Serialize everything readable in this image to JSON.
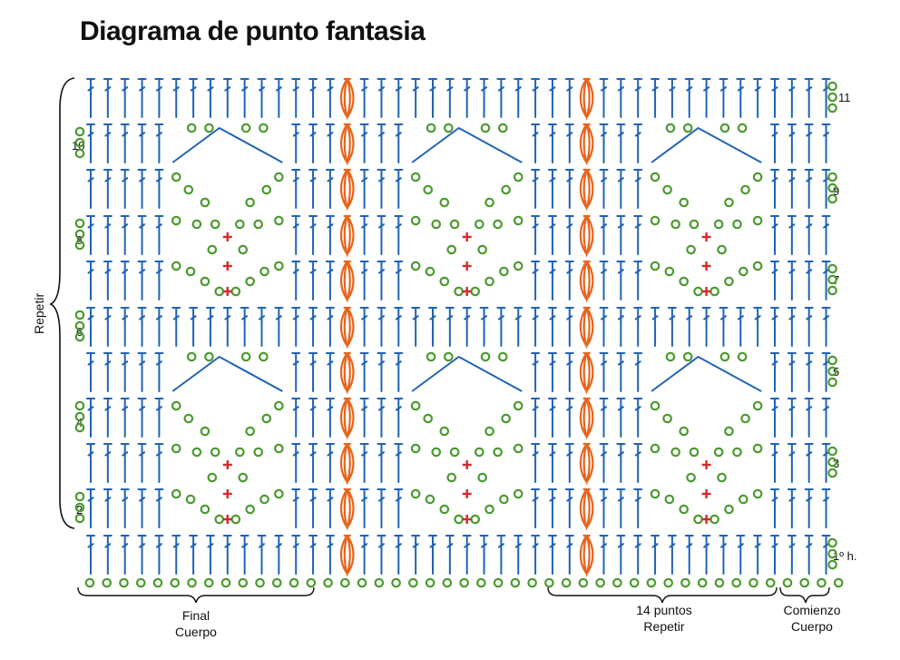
{
  "title": "Diagrama de punto fantasia",
  "side_label": "Repetir",
  "row_labels_left": [
    "10",
    "8",
    "6",
    "4",
    "2"
  ],
  "row_labels_right": [
    "11",
    "9",
    "7",
    "5",
    "3",
    "1º h."
  ],
  "bottom_labels": {
    "final_line1": "Final",
    "final_line2": "Cuerpo",
    "repeat_line1": "14 puntos",
    "repeat_line2": "Repetir",
    "start_line1": "Comienzo",
    "start_line2": "Cuerpo"
  },
  "colors": {
    "double_crochet": "#1f63b5",
    "chain": "#4a9a2e",
    "single_crochet": "#d42a2a",
    "cluster": "#e8641c",
    "text": "#111111"
  },
  "symbols": [
    "double-crochet",
    "chain-stitch",
    "single-crochet",
    "cluster-stitch"
  ]
}
